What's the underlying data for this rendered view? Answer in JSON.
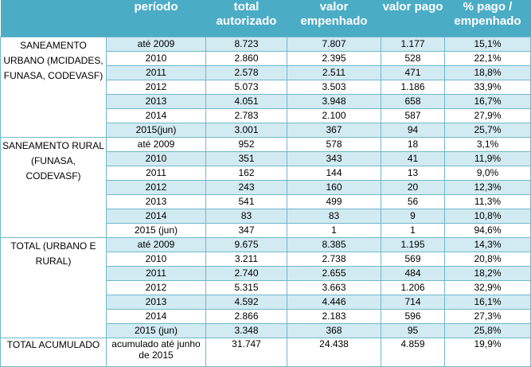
{
  "header": [
    "",
    "período",
    "total autorizado",
    "valor empenhado",
    "valor pago",
    "% pago / empenhado"
  ],
  "groups": [
    {
      "label": "SANEAMENTO URBANO (MCIDADES, FUNASA, CODEVASF)",
      "rows": [
        [
          "até 2009",
          "8.723",
          "7.807",
          "1.177",
          "15,1%"
        ],
        [
          "2010",
          "2.860",
          "2.395",
          "528",
          "22,1%"
        ],
        [
          "2011",
          "2.578",
          "2.511",
          "471",
          "18,8%"
        ],
        [
          "2012",
          "5.073",
          "3.503",
          "1.186",
          "33,9%"
        ],
        [
          "2013",
          "4.051",
          "3.948",
          "658",
          "16,7%"
        ],
        [
          "2014",
          "2.783",
          "2.100",
          "587",
          "27,9%"
        ],
        [
          "2015(jun)",
          "3.001",
          "367",
          "94",
          "25,7%"
        ]
      ]
    },
    {
      "label": "SANEAMENTO RURAL (FUNASA, CODEVASF)",
      "rows": [
        [
          "até 2009",
          "952",
          "578",
          "18",
          "3,1%"
        ],
        [
          "2010",
          "351",
          "343",
          "41",
          "11,9%"
        ],
        [
          "2011",
          "162",
          "144",
          "13",
          "9,0%"
        ],
        [
          "2012",
          "243",
          "160",
          "20",
          "12,3%"
        ],
        [
          "2013",
          "541",
          "499",
          "56",
          "11,3%"
        ],
        [
          "2014",
          "83",
          "83",
          "9",
          "10,8%"
        ],
        [
          "2015 (jun)",
          "347",
          "1",
          "1",
          "94,6%"
        ]
      ]
    },
    {
      "label": "TOTAL  (URBANO E RURAL)",
      "rows": [
        [
          "até 2009",
          "9.675",
          "8.385",
          "1.195",
          "14,3%"
        ],
        [
          "2010",
          "3.211",
          "2.738",
          "569",
          "20,8%"
        ],
        [
          "2011",
          "2.740",
          "2.655",
          "484",
          "18,2%"
        ],
        [
          "2012",
          "5.315",
          "3.663",
          "1.206",
          "32,9%"
        ],
        [
          "2013",
          "4.592",
          "4.446",
          "714",
          "16,1%"
        ],
        [
          "2014",
          "2.866",
          "2.183",
          "596",
          "27,3%"
        ],
        [
          "2015 (jun)",
          "3.348",
          "368",
          "95",
          "25,8%"
        ]
      ]
    }
  ],
  "total": {
    "label": "TOTAL ACUMULADO",
    "row": [
      "acumulado até junho de 2015",
      "31.747",
      "24.438",
      "4.859",
      "19,9%"
    ]
  }
}
